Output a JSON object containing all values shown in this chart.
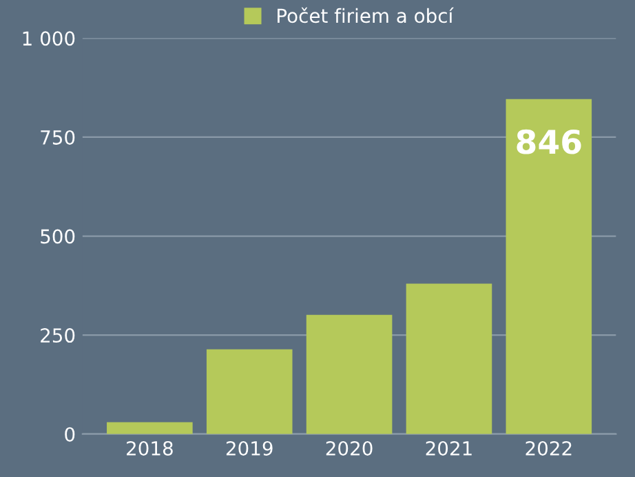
{
  "chart_data": {
    "type": "bar",
    "categories": [
      "2018",
      "2019",
      "2020",
      "2021",
      "2022"
    ],
    "series": [
      {
        "name": "Počet firiem a obcí",
        "color": "#b5c95a",
        "values": [
          30,
          214,
          301,
          380,
          846
        ],
        "value_labels": [
          null,
          null,
          null,
          null,
          "846"
        ]
      }
    ],
    "ylim": [
      0,
      1000
    ],
    "yticks": [
      0,
      250,
      500,
      750,
      {
        "value": 1000,
        "label": "1 000"
      }
    ],
    "grid": "y",
    "legend": "top"
  }
}
